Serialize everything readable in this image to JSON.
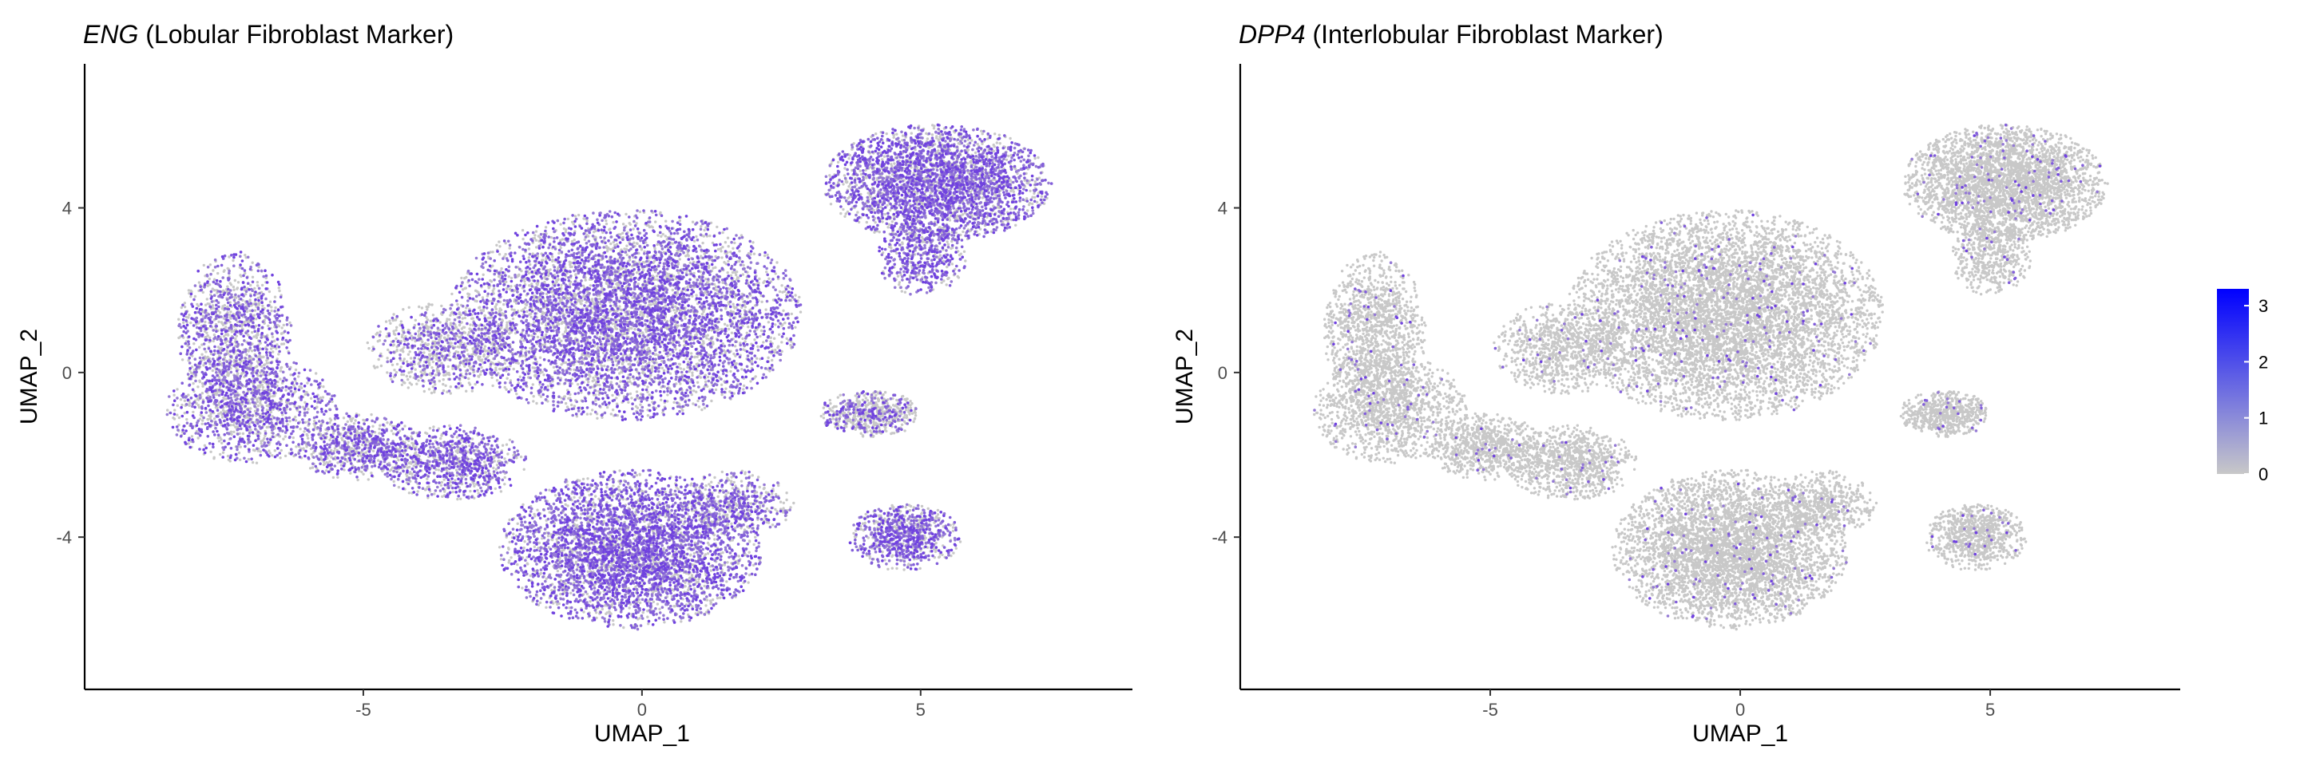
{
  "chart_data": [
    {
      "type": "scatter",
      "title_gene": "ENG",
      "title_rest": " (Lobular Fibroblast Marker)",
      "xlabel": "UMAP_1",
      "ylabel": "UMAP_2",
      "xlim": [
        -10,
        8.8
      ],
      "ylim": [
        -7.7,
        7.5
      ],
      "xticks": [
        -5,
        0,
        5
      ],
      "yticks": [
        -4,
        0,
        4
      ],
      "grid": false,
      "high_expression_share": 0.62,
      "clusters": [
        {
          "name": "left lobe",
          "cx": -7.3,
          "cy": 1.0,
          "rx": 1.0,
          "ry": 1.9,
          "n": 1200,
          "level": 0.55
        },
        {
          "name": "left base",
          "cx": -7.0,
          "cy": -0.9,
          "rx": 1.5,
          "ry": 1.3,
          "n": 1200,
          "level": 0.55
        },
        {
          "name": "left bridge",
          "cx": -5.1,
          "cy": -1.8,
          "rx": 1.1,
          "ry": 0.8,
          "n": 700,
          "level": 0.6
        },
        {
          "name": "center arm",
          "cx": -3.4,
          "cy": -2.2,
          "rx": 1.3,
          "ry": 0.9,
          "n": 900,
          "level": 0.65
        },
        {
          "name": "central mass",
          "cx": -0.3,
          "cy": 1.4,
          "rx": 3.1,
          "ry": 2.5,
          "n": 6400,
          "level": 0.62
        },
        {
          "name": "central left",
          "cx": -3.5,
          "cy": 0.6,
          "rx": 1.4,
          "ry": 1.1,
          "n": 900,
          "level": 0.4
        },
        {
          "name": "lower mass",
          "cx": -0.2,
          "cy": -4.3,
          "rx": 2.3,
          "ry": 1.9,
          "n": 4200,
          "level": 0.7
        },
        {
          "name": "lower tail",
          "cx": 1.7,
          "cy": -3.2,
          "rx": 1.0,
          "ry": 0.8,
          "n": 500,
          "level": 0.55
        },
        {
          "name": "upper right",
          "cx": 5.3,
          "cy": 4.6,
          "rx": 2.0,
          "ry": 1.4,
          "n": 3200,
          "level": 0.68
        },
        {
          "name": "upper right tail",
          "cx": 5.0,
          "cy": 2.8,
          "rx": 0.8,
          "ry": 0.9,
          "n": 500,
          "level": 0.7
        },
        {
          "name": "mid right",
          "cx": 4.1,
          "cy": -1.0,
          "rx": 0.9,
          "ry": 0.55,
          "n": 600,
          "level": 0.35
        },
        {
          "name": "lower right",
          "cx": 4.7,
          "cy": -4.0,
          "rx": 1.0,
          "ry": 0.8,
          "n": 800,
          "level": 0.7
        }
      ]
    },
    {
      "type": "scatter",
      "title_gene": "DPP4",
      "title_rest": " (Interlobular Fibroblast Marker)",
      "xlabel": "UMAP_1",
      "ylabel": "UMAP_2",
      "xlim": [
        -10,
        8.8
      ],
      "ylim": [
        -7.7,
        7.5
      ],
      "xticks": [
        -5,
        0,
        5
      ],
      "yticks": [
        -4,
        0,
        4
      ],
      "grid": false,
      "high_expression_share": 0.03,
      "clusters": "same"
    }
  ],
  "legend": {
    "placement": "right",
    "ticks": [
      "3",
      "2",
      "1",
      "0"
    ],
    "tick_values": [
      3,
      2,
      1,
      0
    ],
    "max_value": 3.3,
    "color_low": "#c8c8c8",
    "color_high": "#0000ff"
  },
  "colors": {
    "point_low": "#c8c8c8",
    "point_high": "#6b3be0",
    "axis": "#000000",
    "tick_label": "#4d4d4d"
  }
}
